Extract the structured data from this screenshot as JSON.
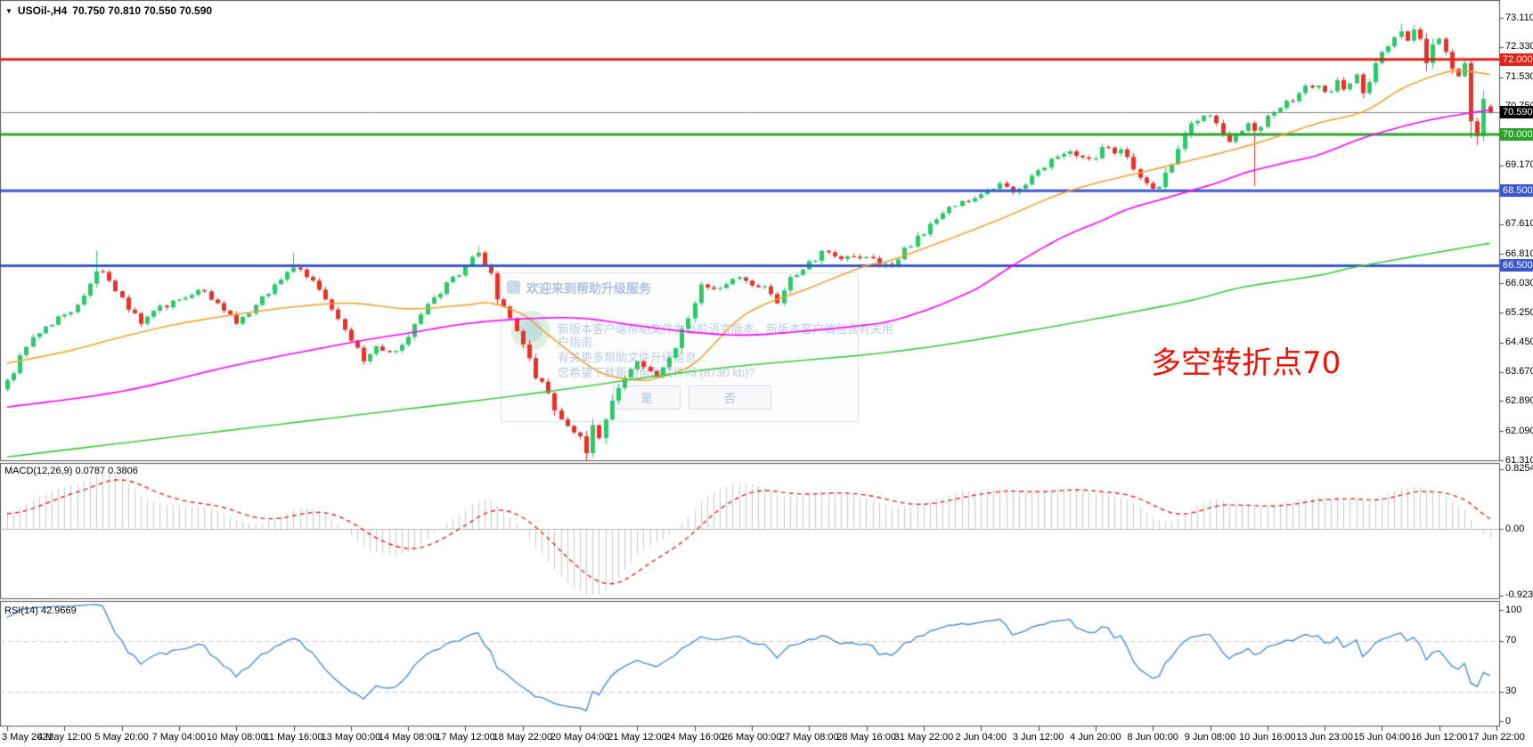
{
  "window": {
    "title_dropdown_glyph": "▼",
    "symbol_title": "USOil-,H4",
    "ohlc_line": "70.750 70.810 70.550 70.590"
  },
  "annotation": {
    "text": "多空转折点70",
    "color": "#ee1309"
  },
  "watermark_dialog": {
    "title": "欢迎来到帮助升级服务",
    "line1": "新版本客户端帮助文件为当前语言版本。新版本客户端包含有关用",
    "line2": "户指南.",
    "line3": "有关更多帮助文件升级信息...",
    "line4": "您希望下载新的帮助文件吗 (8730 kb)?",
    "yes_label": "是",
    "no_label": "否"
  },
  "macd_panel": {
    "label": "MACD(12,26,9) 0.0787 0.3806",
    "scale_max": "0.8254",
    "scale_zero": "0.00",
    "scale_min": "-0.9234"
  },
  "rsi_panel": {
    "label": "RSI(14) 42.9669",
    "scale": [
      "100",
      "70",
      "30",
      "0"
    ]
  },
  "chart_data": {
    "type": "candlestick",
    "symbol": "USOil-",
    "timeframe": "H4",
    "last_bar_ohlc": {
      "open": 70.75,
      "high": 70.81,
      "low": 70.55,
      "close": 70.59
    },
    "current_price": 70.59,
    "y_axis_ticks": [
      73.11,
      72.33,
      71.53,
      70.75,
      69.97,
      69.17,
      68.39,
      67.61,
      66.81,
      66.03,
      65.25,
      64.45,
      63.67,
      62.89,
      62.09,
      61.31
    ],
    "time_axis_labels": [
      "3 May 2021",
      "4 May 12:00",
      "5 May 20:00",
      "7 May 04:00",
      "10 May 08:00",
      "11 May 16:00",
      "13 May 00:00",
      "14 May 08:00",
      "17 May 12:00",
      "18 May 22:00",
      "20 May 04:00",
      "21 May 12:00",
      "24 May 16:00",
      "26 May 00:00",
      "27 May 08:00",
      "28 May 16:00",
      "31 May 22:00",
      "2 Jun 04:00",
      "3 Jun 12:00",
      "4 Jun 20:00",
      "8 Jun 00:00",
      "9 Jun 08:00",
      "10 Jun 16:00",
      "13 Jun 23:00",
      "15 Jun 04:00",
      "16 Jun 12:00",
      "17 Jun 22:00"
    ],
    "levels": [
      {
        "value": 72.0,
        "label": "72.000",
        "color": "#e02318",
        "width": 3
      },
      {
        "value": 70.0,
        "label": "70.000",
        "color": "#2ba32b",
        "width": 3
      },
      {
        "value": 68.5,
        "label": "68.500",
        "color": "#3c56cc",
        "width": 3
      },
      {
        "value": 66.5,
        "label": "66.500",
        "color": "#3c56cc",
        "width": 3
      }
    ],
    "current_price_line": {
      "value": 70.59,
      "label": "70.590",
      "line_color": "#808080",
      "box_color": "#000000"
    },
    "bars_count": 234,
    "price_anchors": [
      [
        0,
        63.45
      ],
      [
        4,
        64.6
      ],
      [
        9,
        65.2
      ],
      [
        12,
        65.7
      ],
      [
        14,
        66.35
      ],
      [
        16,
        66.1
      ],
      [
        18,
        65.65
      ],
      [
        21,
        64.95
      ],
      [
        23,
        65.3
      ],
      [
        27,
        65.6
      ],
      [
        30,
        65.85
      ],
      [
        34,
        65.3
      ],
      [
        36,
        64.95
      ],
      [
        39,
        65.45
      ],
      [
        42,
        66.0
      ],
      [
        45,
        66.45
      ],
      [
        47,
        66.2
      ],
      [
        50,
        65.6
      ],
      [
        54,
        64.5
      ],
      [
        56,
        63.95
      ],
      [
        58,
        64.35
      ],
      [
        60,
        64.2
      ],
      [
        63,
        64.6
      ],
      [
        65,
        65.2
      ],
      [
        68,
        65.75
      ],
      [
        72,
        66.5
      ],
      [
        74,
        66.85
      ],
      [
        76,
        66.3
      ],
      [
        77,
        65.6
      ],
      [
        79,
        65.1
      ],
      [
        81,
        64.4
      ],
      [
        83,
        63.5
      ],
      [
        85,
        63.1
      ],
      [
        87,
        62.4
      ],
      [
        90,
        61.95
      ],
      [
        91,
        61.5
      ],
      [
        92,
        62.25
      ],
      [
        93,
        61.9
      ],
      [
        95,
        62.9
      ],
      [
        99,
        63.95
      ],
      [
        100,
        63.8
      ],
      [
        102,
        63.55
      ],
      [
        105,
        64.3
      ],
      [
        108,
        65.5
      ],
      [
        109,
        66.0
      ],
      [
        112,
        65.9
      ],
      [
        114,
        66.15
      ],
      [
        116,
        66.1
      ],
      [
        119,
        65.95
      ],
      [
        121,
        65.5
      ],
      [
        123,
        66.2
      ],
      [
        125,
        66.4
      ],
      [
        128,
        66.9
      ],
      [
        130,
        66.75
      ],
      [
        134,
        66.7
      ],
      [
        139,
        66.5
      ],
      [
        143,
        67.3
      ],
      [
        147,
        67.9
      ],
      [
        152,
        68.3
      ],
      [
        156,
        68.7
      ],
      [
        158,
        68.45
      ],
      [
        161,
        68.9
      ],
      [
        164,
        69.35
      ],
      [
        167,
        69.55
      ],
      [
        170,
        69.35
      ],
      [
        173,
        69.65
      ],
      [
        176,
        69.4
      ],
      [
        179,
        68.7
      ],
      [
        181,
        68.6
      ],
      [
        183,
        69.2
      ],
      [
        185,
        70.0
      ],
      [
        186,
        70.3
      ],
      [
        188,
        70.5
      ],
      [
        190,
        70.3
      ],
      [
        192,
        69.8
      ],
      [
        193,
        70.0
      ],
      [
        195,
        70.3
      ],
      [
        196,
        70.1
      ],
      [
        197,
        70.2
      ],
      [
        199,
        70.6
      ],
      [
        201,
        70.9
      ],
      [
        203,
        71.1
      ],
      [
        204,
        71.3
      ],
      [
        206,
        71.3
      ],
      [
        208,
        71.15
      ],
      [
        209,
        71.45
      ],
      [
        210,
        71.2
      ],
      [
        212,
        71.6
      ],
      [
        213,
        71.1
      ],
      [
        214,
        71.4
      ],
      [
        215,
        71.9
      ],
      [
        216,
        72.2
      ],
      [
        217,
        72.35
      ],
      [
        218,
        72.6
      ],
      [
        219,
        72.75
      ],
      [
        220,
        72.5
      ],
      [
        221,
        72.8
      ],
      [
        222,
        72.55
      ],
      [
        223,
        71.9
      ],
      [
        224,
        72.4
      ],
      [
        225,
        72.55
      ],
      [
        226,
        72.2
      ],
      [
        227,
        71.75
      ],
      [
        228,
        71.55
      ],
      [
        229,
        71.9
      ],
      [
        230,
        70.35
      ],
      [
        231,
        69.95
      ],
      [
        232,
        70.95
      ],
      [
        233,
        70.59
      ]
    ],
    "forced_extremes": {
      "14": {
        "high": 66.9
      },
      "45": {
        "high": 66.85
      },
      "74": {
        "high": 67.03
      },
      "91": {
        "low": 61.31
      },
      "180": {
        "low": 68.48
      },
      "196": {
        "low": 68.62
      },
      "219": {
        "high": 72.95
      },
      "221": {
        "high": 72.93
      },
      "230": {
        "low": 69.9
      },
      "231": {
        "low": 69.72
      },
      "233": {
        "open": 70.75,
        "high": 70.81,
        "low": 70.55,
        "close": 70.59
      }
    },
    "moving_averages": [
      {
        "name": "fast-ma",
        "color": "#efa434",
        "anchors": [
          [
            0,
            63.9
          ],
          [
            9,
            64.2
          ],
          [
            18,
            64.6
          ],
          [
            27,
            64.95
          ],
          [
            36,
            65.2
          ],
          [
            45,
            65.4
          ],
          [
            54,
            65.5
          ],
          [
            63,
            65.35
          ],
          [
            72,
            65.45
          ],
          [
            76,
            65.5
          ],
          [
            81,
            65.2
          ],
          [
            84,
            64.8
          ],
          [
            90,
            64.0
          ],
          [
            94,
            63.6
          ],
          [
            99,
            63.45
          ],
          [
            102,
            63.5
          ],
          [
            108,
            63.9
          ],
          [
            116,
            65.2
          ],
          [
            126,
            65.9
          ],
          [
            135,
            66.5
          ],
          [
            139,
            66.65
          ],
          [
            154,
            67.6
          ],
          [
            167,
            68.5
          ],
          [
            181,
            69.1
          ],
          [
            195,
            69.7
          ],
          [
            206,
            70.3
          ],
          [
            213,
            70.6
          ],
          [
            219,
            71.2
          ],
          [
            224,
            71.55
          ],
          [
            228,
            71.7
          ],
          [
            233,
            71.6
          ]
        ]
      },
      {
        "name": "medium-ma",
        "color": "#ff00ff",
        "anchors": [
          [
            0,
            62.73
          ],
          [
            18,
            63.15
          ],
          [
            36,
            63.85
          ],
          [
            54,
            64.45
          ],
          [
            63,
            64.7
          ],
          [
            72,
            64.95
          ],
          [
            81,
            65.08
          ],
          [
            90,
            65.1
          ],
          [
            99,
            64.9
          ],
          [
            108,
            64.72
          ],
          [
            116,
            64.65
          ],
          [
            125,
            64.75
          ],
          [
            134,
            64.9
          ],
          [
            139,
            65.03
          ],
          [
            145,
            65.35
          ],
          [
            150,
            65.7
          ],
          [
            153,
            65.95
          ],
          [
            158,
            66.5
          ],
          [
            163,
            67.0
          ],
          [
            167,
            67.35
          ],
          [
            172,
            67.7
          ],
          [
            176,
            68.0
          ],
          [
            181,
            68.25
          ],
          [
            186,
            68.5
          ],
          [
            190,
            68.7
          ],
          [
            195,
            69.0
          ],
          [
            201,
            69.25
          ],
          [
            206,
            69.45
          ],
          [
            213,
            69.9
          ],
          [
            219,
            70.2
          ],
          [
            224,
            70.4
          ],
          [
            229,
            70.55
          ],
          [
            233,
            70.65
          ]
        ]
      },
      {
        "name": "slow-ma",
        "color": "#3dc93d",
        "anchors": [
          [
            0,
            61.4
          ],
          [
            27,
            61.95
          ],
          [
            59,
            62.6
          ],
          [
            83,
            63.1
          ],
          [
            111,
            63.75
          ],
          [
            139,
            64.2
          ],
          [
            160,
            64.75
          ],
          [
            184,
            65.5
          ],
          [
            194,
            65.92
          ],
          [
            206,
            66.24
          ],
          [
            213,
            66.5
          ],
          [
            233,
            67.1
          ]
        ]
      }
    ],
    "macd": {
      "fast": 12,
      "slow": 26,
      "signal": 9,
      "display_max": 0.8254,
      "display_min": -0.9234,
      "current_values": [
        0.0787,
        0.3806
      ],
      "histogram_color": "#c9c9c9",
      "signal_color": "#e02828"
    },
    "rsi": {
      "period": 14,
      "current": 42.9669,
      "overbought": 70,
      "oversold": 30,
      "line_color": "#4a8fd5",
      "level_color": "#c8c8c8"
    },
    "candle_colors": {
      "up": "#2bc96a",
      "down": "#e8312a"
    },
    "warmup": {
      "bars": 30,
      "start_price": 62.2,
      "end_price": 63.45
    }
  }
}
